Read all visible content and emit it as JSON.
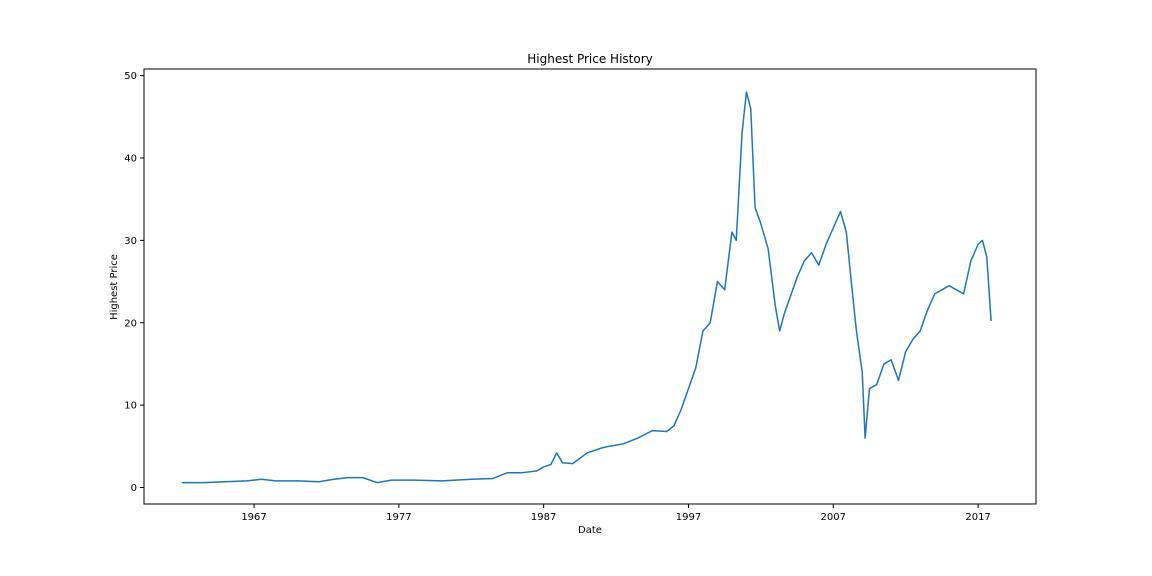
{
  "chart_data": {
    "type": "line",
    "title": "Highest Price History",
    "xlabel": "Date",
    "ylabel": "Highest Price",
    "xlim": [
      1959.4,
      2021.0
    ],
    "ylim": [
      -2.0,
      50.8
    ],
    "grid": false,
    "line_color": "#1f77b4",
    "x_ticks": [
      {
        "value": 1967,
        "label": "1967"
      },
      {
        "value": 1977,
        "label": "1977"
      },
      {
        "value": 1987,
        "label": "1987"
      },
      {
        "value": 1997,
        "label": "1997"
      },
      {
        "value": 2007,
        "label": "2007"
      },
      {
        "value": 2017,
        "label": "2017"
      }
    ],
    "y_ticks": [
      {
        "value": 0,
        "label": "0"
      },
      {
        "value": 10,
        "label": "10"
      },
      {
        "value": 20,
        "label": "20"
      },
      {
        "value": 30,
        "label": "30"
      },
      {
        "value": 40,
        "label": "40"
      },
      {
        "value": 50,
        "label": "50"
      }
    ],
    "series": [
      {
        "x": [
          1962.0,
          1963.5,
          1965.0,
          1966.5,
          1967.5,
          1968.5,
          1970.0,
          1971.5,
          1972.5,
          1973.5,
          1974.5,
          1975.5,
          1976.5,
          1978.0,
          1980.0,
          1982.0,
          1983.5,
          1984.5,
          1985.5,
          1986.5,
          1987.0,
          1987.5,
          1987.9,
          1988.3,
          1989.0,
          1990.0,
          1991.0,
          1991.5,
          1992.5,
          1993.5,
          1994.5,
          1995.5,
          1996.0,
          1996.5,
          1997.0,
          1997.5,
          1998.0,
          1998.5,
          1999.0,
          1999.5,
          2000.0,
          2000.3,
          2000.7,
          2001.0,
          2001.3,
          2001.6,
          2002.0,
          2002.5,
          2003.0,
          2003.3,
          2003.6,
          2004.0,
          2004.5,
          2005.0,
          2005.5,
          2006.0,
          2006.5,
          2007.0,
          2007.5,
          2007.9,
          2008.3,
          2008.6,
          2009.0,
          2009.2,
          2009.5,
          2010.0,
          2010.5,
          2011.0,
          2011.5,
          2012.0,
          2012.5,
          2013.0,
          2013.5,
          2014.0,
          2014.5,
          2015.0,
          2015.5,
          2016.0,
          2016.5,
          2017.0,
          2017.3,
          2017.6,
          2017.9
        ],
        "y": [
          0.6,
          0.6,
          0.7,
          0.8,
          1.0,
          0.8,
          0.8,
          0.7,
          1.0,
          1.2,
          1.2,
          0.6,
          0.9,
          0.9,
          0.8,
          1.0,
          1.1,
          1.8,
          1.8,
          2.0,
          2.5,
          2.8,
          4.2,
          3.0,
          2.9,
          4.2,
          4.8,
          5.0,
          5.3,
          6.0,
          6.9,
          6.8,
          7.5,
          9.5,
          12.0,
          14.5,
          19.0,
          20.0,
          25.0,
          24.0,
          31.0,
          30.0,
          43.0,
          48.0,
          46.0,
          34.0,
          32.0,
          29.0,
          22.0,
          19.0,
          21.0,
          23.0,
          25.5,
          27.5,
          28.5,
          27.0,
          29.5,
          31.5,
          33.5,
          31.0,
          24.0,
          19.0,
          14.0,
          6.0,
          12.0,
          12.5,
          15.0,
          15.5,
          13.0,
          16.5,
          18.0,
          19.0,
          21.5,
          23.5,
          24.0,
          24.5,
          24.0,
          23.5,
          27.5,
          29.5,
          30.0,
          28.0,
          20.2
        ]
      }
    ]
  }
}
